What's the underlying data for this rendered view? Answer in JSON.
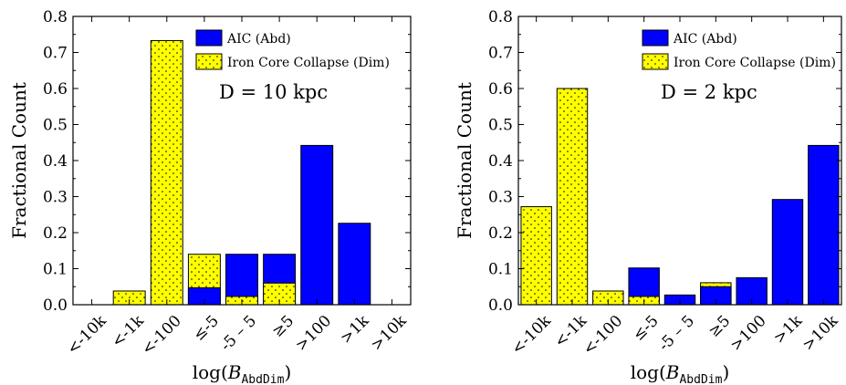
{
  "chart_data": [
    {
      "type": "bar",
      "ylabel": "Fractional Count",
      "xlabel": {
        "prefix": "log(",
        "var": "B",
        "sub": "AbdDim",
        "suffix": ")"
      },
      "ylim": [
        0,
        0.8
      ],
      "yticks": [
        "0.0",
        "0.1",
        "0.2",
        "0.3",
        "0.4",
        "0.5",
        "0.6",
        "0.7",
        "0.8"
      ],
      "categories": [
        "<-10k",
        "<-1k",
        "<-100",
        "≤-5",
        "-5 – 5",
        "≥5",
        ">100",
        ">1k",
        ">10k"
      ],
      "series": [
        {
          "name": "AIC (Abd)",
          "color": "#0000ff",
          "hatch": false,
          "values": [
            0,
            0,
            0,
            0.047,
            0.14,
            0.14,
            0.442,
            0.226,
            0
          ]
        },
        {
          "name": "Iron Core Collapse (Dim)",
          "color": "#ffff00",
          "hatch": true,
          "values": [
            0,
            0.038,
            0.733,
            0.14,
            0.023,
            0.06,
            0,
            0,
            0
          ]
        }
      ],
      "draw_order": [
        [
          1,
          0
        ],
        [
          1,
          0
        ],
        [
          1,
          0
        ],
        [
          1,
          0
        ],
        [
          0,
          1
        ],
        [
          0,
          1
        ],
        [
          0,
          1
        ],
        [
          0,
          1
        ],
        [
          0,
          1
        ]
      ],
      "legend": [
        "AIC (Abd)",
        "Iron Core Collapse (Dim)"
      ],
      "annotation": "D = 10 kpc",
      "grid": false
    },
    {
      "type": "bar",
      "ylabel": "Fractional Count",
      "xlabel": {
        "prefix": "log(",
        "var": "B",
        "sub": "AbdDim",
        "suffix": ")"
      },
      "ylim": [
        0,
        0.8
      ],
      "yticks": [
        "0.0",
        "0.1",
        "0.2",
        "0.3",
        "0.4",
        "0.5",
        "0.6",
        "0.7",
        "0.8"
      ],
      "categories": [
        "<-10k",
        "<-1k",
        "<-100",
        "≤-5",
        "-5 – 5",
        "≥5",
        ">100",
        ">1k",
        ">10k"
      ],
      "series": [
        {
          "name": "AIC (Abd)",
          "color": "#0000ff",
          "hatch": false,
          "values": [
            0,
            0,
            0,
            0.102,
            0.027,
            0.05,
            0.075,
            0.292,
            0.442
          ]
        },
        {
          "name": "Iron Core Collapse (Dim)",
          "color": "#ffff00",
          "hatch": true,
          "values": [
            0.272,
            0.6,
            0.038,
            0.023,
            0,
            0.061,
            0,
            0,
            0
          ]
        }
      ],
      "draw_order": [
        [
          1,
          0
        ],
        [
          1,
          0
        ],
        [
          1,
          0
        ],
        [
          0,
          1
        ],
        [
          0,
          1
        ],
        [
          1,
          0
        ],
        [
          0,
          1
        ],
        [
          0,
          1
        ],
        [
          0,
          1
        ]
      ],
      "legend": [
        "AIC (Abd)",
        "Iron Core Collapse (Dim)"
      ],
      "annotation": "D = 2 kpc",
      "grid": false
    }
  ]
}
